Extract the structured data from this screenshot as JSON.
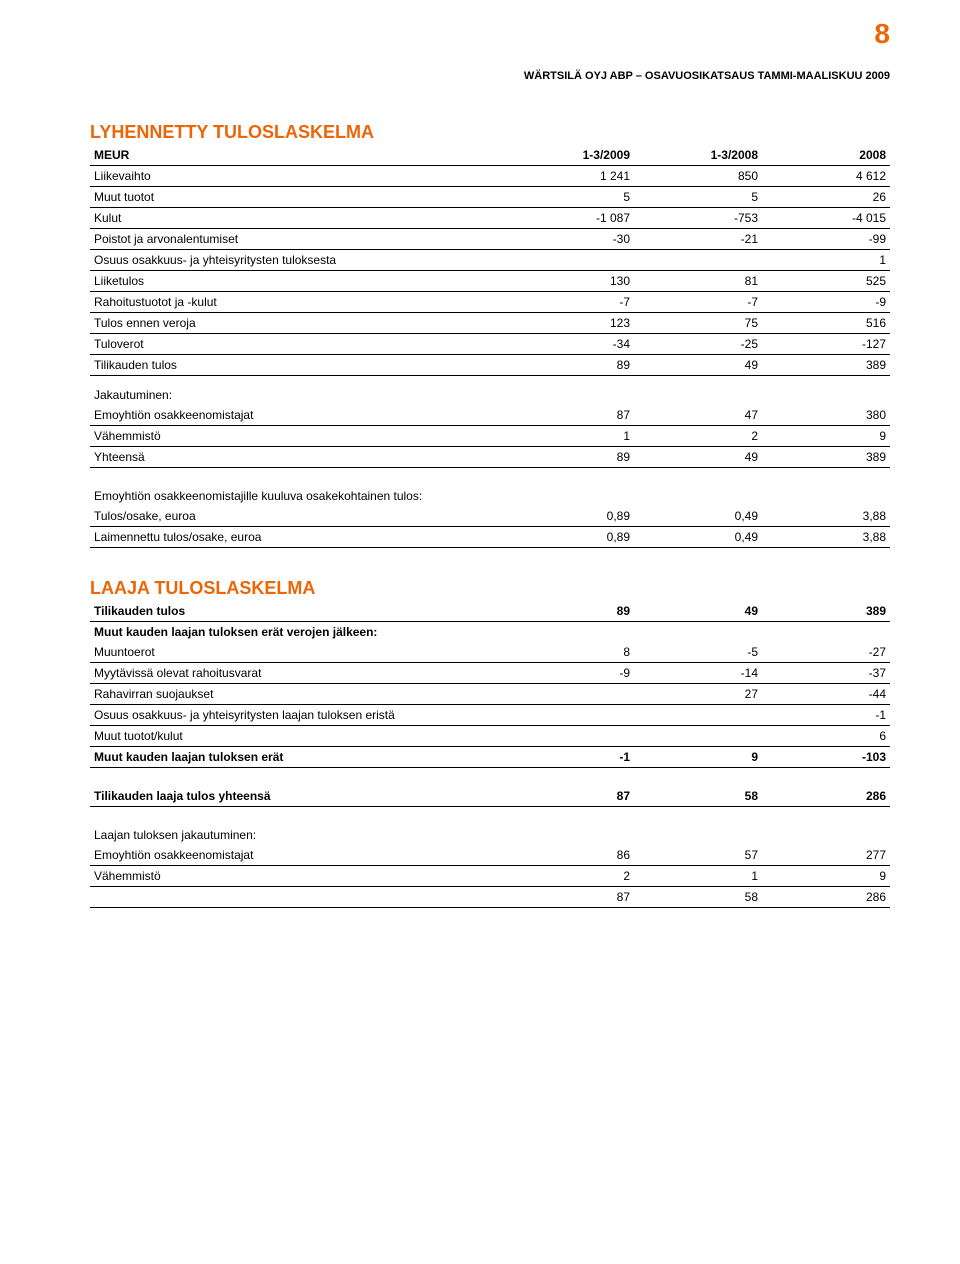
{
  "page_number": "8",
  "doc_header": "WÄRTSILÄ OYJ ABP – OSAVUOSIKATSAUS TAMMI-MAALISKUU 2009",
  "colors": {
    "accent": "#ec6608",
    "text": "#000000",
    "background": "#ffffff",
    "rule": "#000000"
  },
  "typography": {
    "base_font": "Arial, Helvetica, sans-serif",
    "base_size_pt": 9,
    "title_size_pt": 14,
    "page_number_size_pt": 22
  },
  "section1": {
    "title": "LYHENNETTY TULOSLASKELMA",
    "columns": [
      "MEUR",
      "1-3/2009",
      "1-3/2008",
      "2008"
    ],
    "rows": [
      {
        "label": "Liikevaihto",
        "c1": "1 241",
        "c2": "850",
        "c3": "4 612"
      },
      {
        "label": "Muut tuotot",
        "c1": "5",
        "c2": "5",
        "c3": "26"
      },
      {
        "label": "Kulut",
        "c1": "-1 087",
        "c2": "-753",
        "c3": "-4 015"
      },
      {
        "label": "Poistot ja arvonalentumiset",
        "c1": "-30",
        "c2": "-21",
        "c3": "-99"
      },
      {
        "label": "Osuus osakkuus- ja yhteisyritysten tuloksesta",
        "c1": "",
        "c2": "",
        "c3": "1"
      },
      {
        "label": "Liiketulos",
        "c1": "130",
        "c2": "81",
        "c3": "525"
      },
      {
        "label": "Rahoitustuotot ja -kulut",
        "c1": "-7",
        "c2": "-7",
        "c3": "-9"
      },
      {
        "label": "Tulos ennen veroja",
        "c1": "123",
        "c2": "75",
        "c3": "516"
      },
      {
        "label": "Tuloverot",
        "c1": "-34",
        "c2": "-25",
        "c3": "-127"
      },
      {
        "label": "Tilikauden tulos",
        "c1": "89",
        "c2": "49",
        "c3": "389"
      }
    ],
    "jakautuminen_label": "Jakautuminen:",
    "jak_rows": [
      {
        "label": "Emoyhtiön osakkeenomistajat",
        "c1": "87",
        "c2": "47",
        "c3": "380"
      },
      {
        "label": "Vähemmistö",
        "c1": "1",
        "c2": "2",
        "c3": "9"
      },
      {
        "label": "Yhteensä",
        "c1": "89",
        "c2": "49",
        "c3": "389"
      }
    ],
    "eps_label": "Emoyhtiön osakkeenomistajille kuuluva osakekohtainen tulos:",
    "eps_rows": [
      {
        "label": "Tulos/osake, euroa",
        "c1": "0,89",
        "c2": "0,49",
        "c3": "3,88"
      },
      {
        "label": "Laimennettu tulos/osake, euroa",
        "c1": "0,89",
        "c2": "0,49",
        "c3": "3,88"
      }
    ]
  },
  "section2": {
    "title": "LAAJA TULOSLASKELMA",
    "rows": [
      {
        "label": "Tilikauden tulos",
        "c1": "89",
        "c2": "49",
        "c3": "389",
        "bold": true
      },
      {
        "label": "Muut kauden laajan tuloksen erät verojen jälkeen:",
        "c1": "",
        "c2": "",
        "c3": "",
        "bold": true,
        "noborder": true
      },
      {
        "label": "Muuntoerot",
        "c1": "8",
        "c2": "-5",
        "c3": "-27"
      },
      {
        "label": "Myytävissä olevat rahoitusvarat",
        "c1": "-9",
        "c2": "-14",
        "c3": "-37"
      },
      {
        "label": "Rahavirran suojaukset",
        "c1": "",
        "c2": "27",
        "c3": "-44"
      },
      {
        "label": "Osuus osakkuus- ja yhteisyritysten laajan tuloksen eristä",
        "c1": "",
        "c2": "",
        "c3": "-1"
      },
      {
        "label": "Muut tuotot/kulut",
        "c1": "",
        "c2": "",
        "c3": "6"
      },
      {
        "label": "Muut kauden laajan tuloksen erät",
        "c1": "-1",
        "c2": "9",
        "c3": "-103",
        "bold": true
      }
    ],
    "total_row": {
      "label": "Tilikauden laaja tulos yhteensä",
      "c1": "87",
      "c2": "58",
      "c3": "286"
    },
    "jak_label": "Laajan tuloksen jakautuminen:",
    "jak_rows": [
      {
        "label": "Emoyhtiön osakkeenomistajat",
        "c1": "86",
        "c2": "57",
        "c3": "277"
      },
      {
        "label": "Vähemmistö",
        "c1": "2",
        "c2": "1",
        "c3": "9"
      },
      {
        "label": "",
        "c1": "87",
        "c2": "58",
        "c3": "286"
      }
    ]
  }
}
